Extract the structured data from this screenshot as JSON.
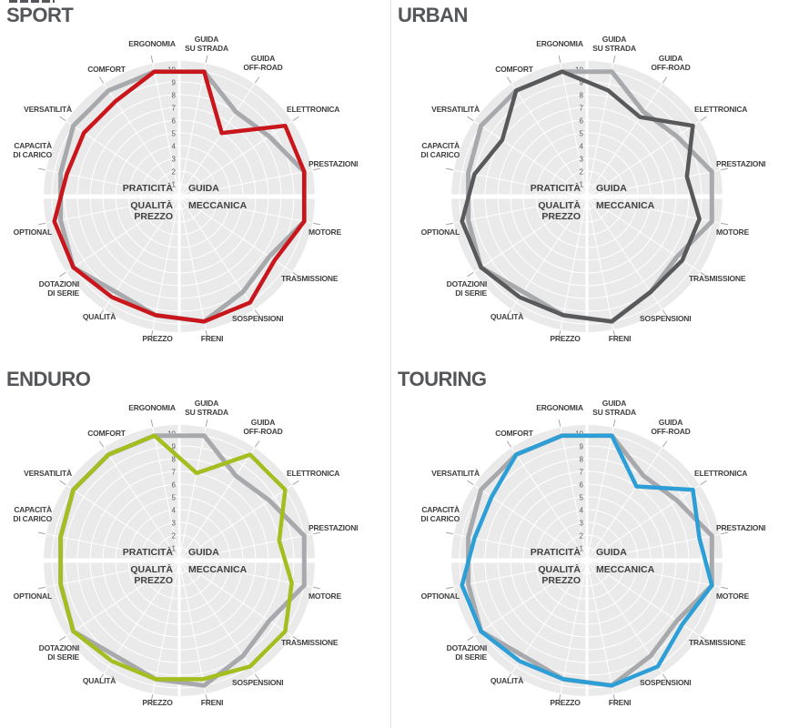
{
  "chart_data": {
    "type": "radar",
    "common": {
      "scale": {
        "min": 1,
        "max": 10,
        "ticks": [
          1,
          2,
          3,
          4,
          5,
          6,
          7,
          8,
          9,
          10
        ]
      },
      "quadrant_labels": {
        "top_left": "PRATICITÀ",
        "top_right": "GUIDA",
        "bottom_left": [
          "QUALITÀ",
          "PREZZO"
        ],
        "bottom_right": "MECCANICA"
      },
      "axes": [
        [
          "GUIDA",
          "SU STRADA"
        ],
        [
          "GUIDA",
          "OFF-ROAD"
        ],
        [
          "ELETTRONICA"
        ],
        [
          "PRESTAZIONI"
        ],
        [
          "MOTORE"
        ],
        [
          "TRASMISSIONE"
        ],
        [
          "SOSPENSIONI"
        ],
        [
          "FRENI"
        ],
        [
          "PREZZO"
        ],
        [
          "QUALITÀ"
        ],
        [
          "DOTAZIONI",
          "DI SERIE"
        ],
        [
          "OPTIONAL"
        ],
        [
          "CAPACITÀ",
          "DI CARICO"
        ],
        [
          "VERSATILITÀ"
        ],
        [
          "COMFORT"
        ],
        [
          "ERGONOMIA"
        ]
      ],
      "reference_series": {
        "name": "reference-line",
        "color": "#a7a9ac",
        "values": [
          10,
          8,
          8.5,
          10,
          10,
          8.5,
          9,
          10,
          9.5,
          9,
          10,
          9.5,
          9.5,
          10,
          10,
          10
        ]
      }
    },
    "charts": [
      {
        "title": "SPORT",
        "color": "#c9161c",
        "values": [
          10,
          6,
          10,
          10,
          10,
          9,
          10,
          10,
          9.5,
          9.5,
          10,
          10,
          9,
          9,
          9,
          10
        ]
      },
      {
        "title": "URBAN",
        "color": "#58595b",
        "values": [
          8.5,
          7.5,
          10,
          8,
          9,
          9,
          9,
          10,
          9.5,
          9.5,
          10,
          10,
          9,
          8,
          10,
          10
        ]
      },
      {
        "title": "ENDURO",
        "color": "#a5bd1f",
        "values": [
          7,
          10,
          10,
          8,
          9,
          10,
          10,
          9.5,
          9.5,
          9.5,
          10,
          9.5,
          9.5,
          10,
          10,
          10
        ]
      },
      {
        "title": "TOURING",
        "color": "#2d9fd6",
        "values": [
          10,
          7,
          10,
          9,
          10,
          9,
          10,
          10,
          9.5,
          9.5,
          10,
          10,
          9,
          9,
          10,
          10
        ]
      }
    ]
  },
  "style_colors": {
    "plot_disc": "#eaeaea",
    "grid_lines": "#ffffff",
    "axis_label": "#414042",
    "scale_number": "#58595b",
    "title": "#55565a",
    "leader_tick": "#a6a6a6"
  }
}
